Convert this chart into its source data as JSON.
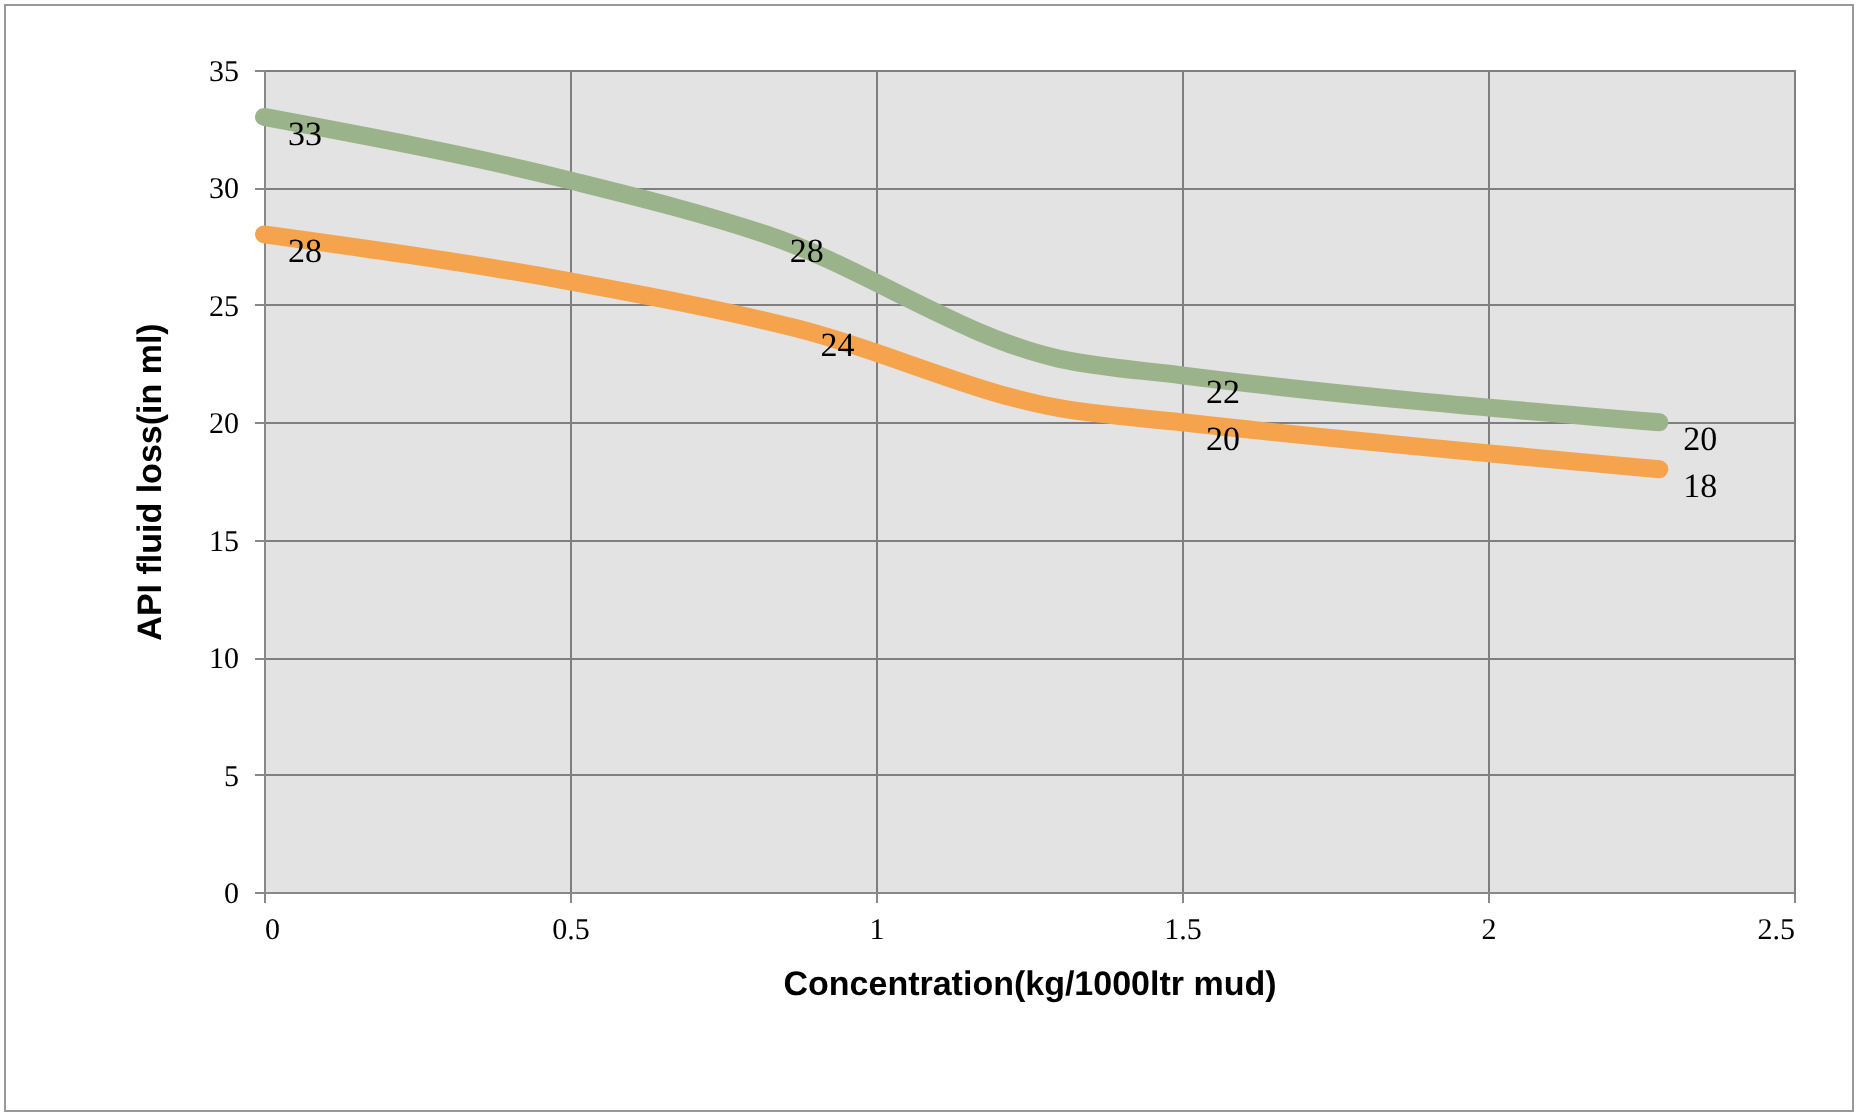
{
  "chart_data": {
    "type": "line",
    "xlabel": "Concentration(kg/1000ltr mud)",
    "ylabel": "API fluid loss(in ml)",
    "xlim": [
      0,
      2.5
    ],
    "xticks": [
      0,
      0.5,
      1,
      1.5,
      2,
      2.5
    ],
    "ylim": [
      0,
      35
    ],
    "yticks": [
      0,
      5,
      10,
      15,
      20,
      25,
      30,
      35
    ],
    "grid": true,
    "line_style": "solid",
    "series": [
      {
        "color": "#9bb38a",
        "x": [
          0,
          0.5,
          0.82,
          1.3,
          1.5,
          2.28
        ],
        "values": [
          33,
          30.3,
          28,
          22.7,
          22,
          20
        ],
        "value_labels": [
          "33",
          null,
          "28",
          null,
          "22",
          "20"
        ]
      },
      {
        "color": "#f6a34e",
        "x": [
          0,
          0.5,
          0.87,
          1.3,
          1.5,
          2.28
        ],
        "values": [
          28,
          26,
          24,
          20.6,
          20,
          18
        ],
        "value_labels": [
          "28",
          null,
          "24",
          null,
          "20",
          "18"
        ]
      }
    ]
  }
}
